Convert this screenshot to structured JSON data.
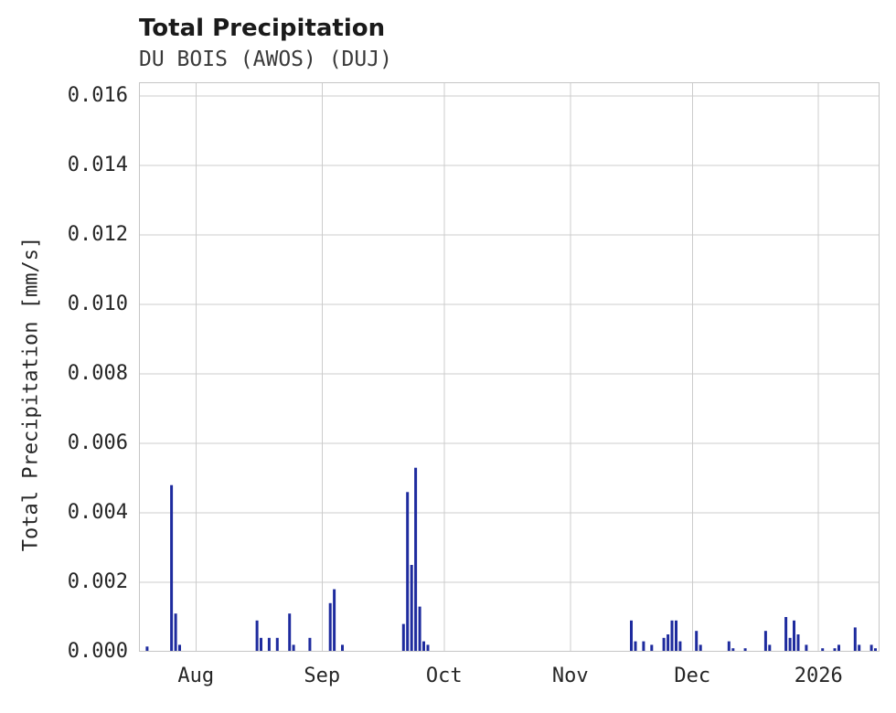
{
  "chart_data": {
    "type": "bar",
    "title": "Total Precipitation",
    "subtitle": "DU BOIS (AWOS) (DUJ)",
    "ylabel": "Total Precipitation [mm/s]",
    "xlabel": "",
    "ylim": [
      0,
      0.0164
    ],
    "grid": true,
    "legend": "none",
    "colors": {
      "bar": "#1e2b9e",
      "grid": "#cccccc",
      "spine": "#c6c6c6",
      "tick_text": "#262626",
      "title_text": "#1a1a1a",
      "subtitle_text": "#3a3a3a",
      "background": "#ffffff"
    },
    "yticks": [
      {
        "value": 0.0,
        "label": "0.000"
      },
      {
        "value": 0.002,
        "label": "0.002"
      },
      {
        "value": 0.004,
        "label": "0.004"
      },
      {
        "value": 0.006,
        "label": "0.006"
      },
      {
        "value": 0.008,
        "label": "0.008"
      },
      {
        "value": 0.01,
        "label": "0.010"
      },
      {
        "value": 0.012,
        "label": "0.012"
      },
      {
        "value": 0.014,
        "label": "0.014"
      },
      {
        "value": 0.016,
        "label": "0.016"
      }
    ],
    "xticks": [
      {
        "label": "Aug",
        "date": "2025-08-01"
      },
      {
        "label": "Sep",
        "date": "2025-09-01"
      },
      {
        "label": "Oct",
        "date": "2025-10-01"
      },
      {
        "label": "Nov",
        "date": "2025-11-01"
      },
      {
        "label": "Dec",
        "date": "2025-12-01"
      },
      {
        "label": "2026",
        "date": "2026-01-01"
      }
    ],
    "x_range": [
      "2025-07-18",
      "2026-01-16"
    ],
    "series": [
      {
        "name": "Total Precipitation",
        "points": [
          [
            "2025-07-20",
            0.00015
          ],
          [
            "2025-07-26",
            0.0048
          ],
          [
            "2025-07-27",
            0.0011
          ],
          [
            "2025-07-28",
            0.0002
          ],
          [
            "2025-08-16",
            0.0009
          ],
          [
            "2025-08-17",
            0.0004
          ],
          [
            "2025-08-19",
            0.0004
          ],
          [
            "2025-08-21",
            0.0004
          ],
          [
            "2025-08-24",
            0.0011
          ],
          [
            "2025-08-25",
            0.0002
          ],
          [
            "2025-08-29",
            0.0004
          ],
          [
            "2025-09-03",
            0.0014
          ],
          [
            "2025-09-04",
            0.0018
          ],
          [
            "2025-09-06",
            0.0002
          ],
          [
            "2025-09-21",
            0.0008
          ],
          [
            "2025-09-22",
            0.0046
          ],
          [
            "2025-09-23",
            0.0025
          ],
          [
            "2025-09-24",
            0.0053
          ],
          [
            "2025-09-25",
            0.0013
          ],
          [
            "2025-09-26",
            0.0003
          ],
          [
            "2025-09-27",
            0.0002
          ],
          [
            "2025-11-16",
            0.0009
          ],
          [
            "2025-11-17",
            0.0003
          ],
          [
            "2025-11-19",
            0.0003
          ],
          [
            "2025-11-21",
            0.0002
          ],
          [
            "2025-11-24",
            0.0004
          ],
          [
            "2025-11-25",
            0.0005
          ],
          [
            "2025-11-26",
            0.0009
          ],
          [
            "2025-11-27",
            0.0009
          ],
          [
            "2025-11-28",
            0.0003
          ],
          [
            "2025-12-02",
            0.0006
          ],
          [
            "2025-12-03",
            0.0002
          ],
          [
            "2025-12-10",
            0.0003
          ],
          [
            "2025-12-11",
            0.0001
          ],
          [
            "2025-12-14",
            0.0001
          ],
          [
            "2025-12-19",
            0.0006
          ],
          [
            "2025-12-20",
            0.0002
          ],
          [
            "2025-12-24",
            0.001
          ],
          [
            "2025-12-25",
            0.0004
          ],
          [
            "2025-12-26",
            0.0009
          ],
          [
            "2025-12-27",
            0.0005
          ],
          [
            "2025-12-29",
            0.0002
          ],
          [
            "2026-01-02",
            0.0001
          ],
          [
            "2026-01-05",
            0.0001
          ],
          [
            "2026-01-06",
            0.0002
          ],
          [
            "2026-01-10",
            0.0007
          ],
          [
            "2026-01-11",
            0.0002
          ],
          [
            "2026-01-14",
            0.0002
          ],
          [
            "2026-01-15",
            0.0001
          ]
        ]
      }
    ]
  }
}
